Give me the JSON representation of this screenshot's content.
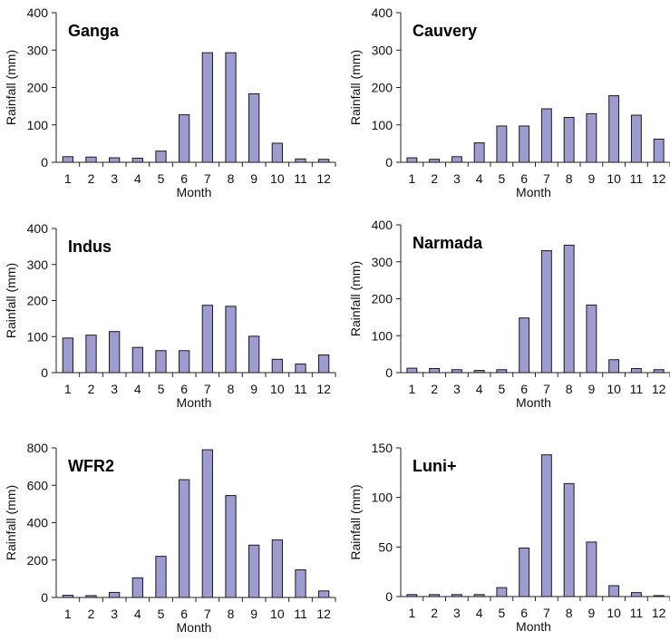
{
  "bar_color": "#9d9bd0",
  "bar_stroke": "#1a1a1a",
  "chart_data": [
    {
      "type": "bar",
      "title": "Ganga",
      "xlabel": "Month",
      "ylabel": "Rainfall (mm)",
      "categories": [
        "1",
        "2",
        "3",
        "4",
        "5",
        "6",
        "7",
        "8",
        "9",
        "10",
        "11",
        "12"
      ],
      "values": [
        15,
        14,
        12,
        11,
        30,
        127,
        293,
        293,
        183,
        51,
        9,
        8
      ],
      "ylim": [
        0,
        400
      ],
      "yticks": [
        0,
        100,
        200,
        300,
        400
      ],
      "grid": false
    },
    {
      "type": "bar",
      "title": "Cauvery",
      "xlabel": "Month",
      "ylabel": "Rainfall (mm)",
      "categories": [
        "1",
        "2",
        "3",
        "4",
        "5",
        "6",
        "7",
        "8",
        "9",
        "10",
        "11",
        "12"
      ],
      "values": [
        12,
        8,
        15,
        52,
        97,
        97,
        143,
        120,
        130,
        178,
        126,
        62
      ],
      "ylim": [
        0,
        400
      ],
      "yticks": [
        0,
        100,
        200,
        300,
        400
      ],
      "grid": false
    },
    {
      "type": "bar",
      "title": "Indus",
      "xlabel": "Month",
      "ylabel": "Rainfall (mm)",
      "categories": [
        "1",
        "2",
        "3",
        "4",
        "5",
        "6",
        "7",
        "8",
        "9",
        "10",
        "11",
        "12"
      ],
      "values": [
        96,
        104,
        114,
        70,
        61,
        61,
        187,
        184,
        101,
        37,
        24,
        49
      ],
      "ylim": [
        0,
        400
      ],
      "yticks": [
        0,
        100,
        200,
        300,
        400
      ],
      "grid": false
    },
    {
      "type": "bar",
      "title": "Narmada",
      "xlabel": "Month",
      "ylabel": "Rainfall (mm)",
      "categories": [
        "1",
        "2",
        "3",
        "4",
        "5",
        "6",
        "7",
        "8",
        "9",
        "10",
        "11",
        "12"
      ],
      "values": [
        12,
        11,
        8,
        6,
        8,
        148,
        330,
        345,
        183,
        35,
        11,
        8
      ],
      "ylim": [
        0,
        400
      ],
      "yticks": [
        0,
        100,
        200,
        300,
        400
      ],
      "grid": false
    },
    {
      "type": "bar",
      "title": "WFR2",
      "xlabel": "Month",
      "ylabel": "Rainfall (mm)",
      "categories": [
        "1",
        "2",
        "3",
        "4",
        "5",
        "6",
        "7",
        "8",
        "9",
        "10",
        "11",
        "12"
      ],
      "values": [
        12,
        10,
        27,
        105,
        220,
        630,
        790,
        545,
        280,
        308,
        148,
        35
      ],
      "ylim": [
        0,
        800
      ],
      "yticks": [
        0,
        200,
        400,
        600,
        800
      ],
      "grid": false
    },
    {
      "type": "bar",
      "title": "Luni+",
      "xlabel": "Month",
      "ylabel": "Rainfall (mm)",
      "categories": [
        "1",
        "2",
        "3",
        "4",
        "5",
        "6",
        "7",
        "8",
        "9",
        "10",
        "11",
        "12"
      ],
      "values": [
        2,
        2,
        2,
        2,
        9,
        49,
        143,
        114,
        55,
        11,
        4,
        1
      ],
      "ylim": [
        0,
        150
      ],
      "yticks": [
        0,
        50,
        100,
        150
      ],
      "grid": false
    }
  ]
}
